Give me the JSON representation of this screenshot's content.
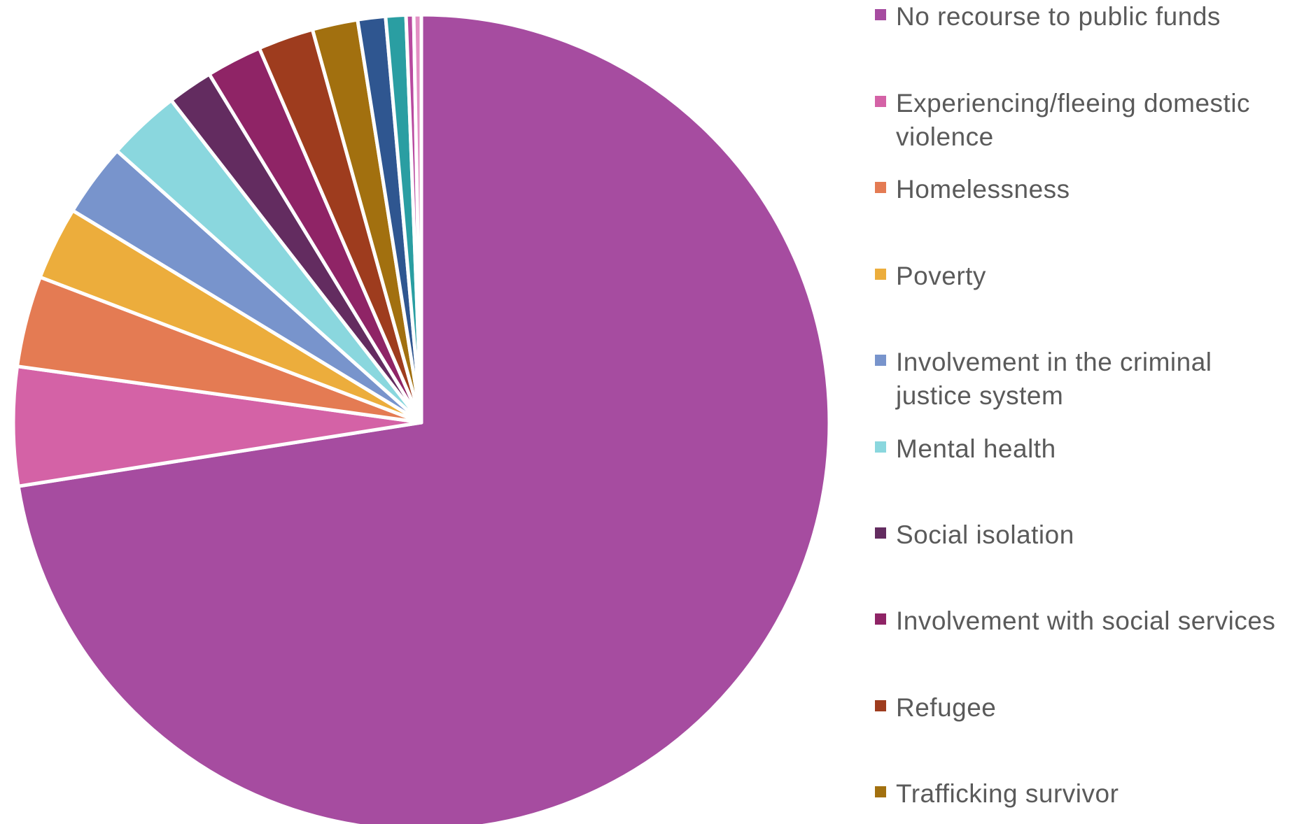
{
  "chart_data": {
    "type": "pie",
    "title": "",
    "legend_position": "right",
    "start_angle_deg": 0,
    "direction": "clockwise",
    "slices": [
      {
        "label": "No recourse to public funds",
        "value": 72.5,
        "color": "#a64ca0"
      },
      {
        "label": "Experiencing/fleeing domestic violence",
        "value": 4.7,
        "color": "#d462a6"
      },
      {
        "label": "Homelessness",
        "value": 3.6,
        "color": "#e47b53"
      },
      {
        "label": "Poverty",
        "value": 2.9,
        "color": "#ecad3c"
      },
      {
        "label": "Involvement in the criminal justice system",
        "value": 2.9,
        "color": "#7894cc"
      },
      {
        "label": "Mental health",
        "value": 2.9,
        "color": "#8ad7de"
      },
      {
        "label": "Social isolation",
        "value": 1.8,
        "color": "#632c60"
      },
      {
        "label": "Involvement with social services",
        "value": 2.2,
        "color": "#8f2466"
      },
      {
        "label": "Refugee",
        "value": 2.2,
        "color": "#9e3c1e"
      },
      {
        "label": "Trafficking survivor",
        "value": 1.8,
        "color": "#a2700f"
      },
      {
        "label": "",
        "value": 1.1,
        "color": "#2f5690"
      },
      {
        "label": "",
        "value": 0.8,
        "color": "#2a9ea2"
      },
      {
        "label": "",
        "value": 0.3,
        "color": "#b84a9f"
      },
      {
        "label": "",
        "value": 0.3,
        "color": "#e38fc4"
      }
    ]
  },
  "legend": {
    "items": [
      {
        "label": "No recourse to public funds",
        "color": "#a64ca0"
      },
      {
        "label": "Experiencing/fleeing domestic violence",
        "color": "#d462a6"
      },
      {
        "label": "Homelessness",
        "color": "#e47b53"
      },
      {
        "label": "Poverty",
        "color": "#ecad3c"
      },
      {
        "label": "Involvement in the criminal justice system",
        "color": "#7894cc"
      },
      {
        "label": "Mental health",
        "color": "#8ad7de"
      },
      {
        "label": "Social isolation",
        "color": "#632c60"
      },
      {
        "label": "Involvement with social services",
        "color": "#8f2466"
      },
      {
        "label": "Refugee",
        "color": "#9e3c1e"
      },
      {
        "label": "Trafficking survivor",
        "color": "#a2700f"
      }
    ]
  }
}
